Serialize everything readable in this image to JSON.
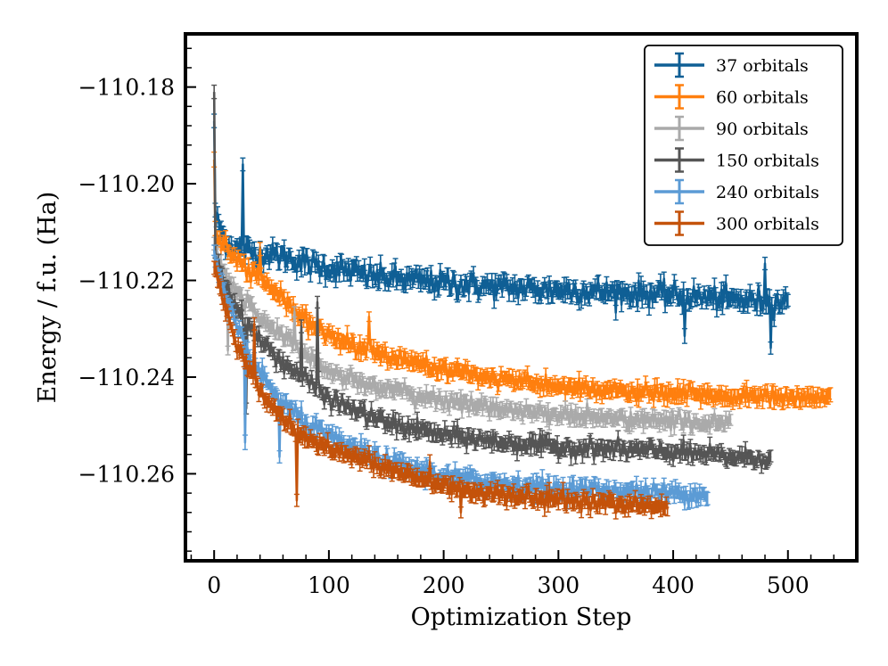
{
  "chart_data": {
    "type": "line",
    "title": "",
    "xlabel": "Optimization Step",
    "ylabel": "Energy / f.u. (Ha)",
    "xlim": [
      -25,
      560
    ],
    "ylim": [
      -110.278,
      -110.169
    ],
    "x_ticks": [
      0,
      100,
      200,
      300,
      400,
      500
    ],
    "x_tick_labels": [
      "0",
      "100",
      "200",
      "300",
      "400",
      "500"
    ],
    "y_ticks": [
      -110.26,
      -110.24,
      -110.22,
      -110.2,
      -110.18
    ],
    "y_tick_labels": [
      "−110.26",
      "−110.24",
      "−110.22",
      "−110.20",
      "−110.18"
    ],
    "legend_position": "top-right",
    "error_bars": true,
    "series": [
      {
        "name": "37 orbitals",
        "color": "#0f5f95",
        "steps": 500,
        "anchor_x": [
          0,
          5,
          10,
          20,
          40,
          60,
          80,
          100,
          150,
          200,
          250,
          300,
          350,
          400,
          450,
          500
        ],
        "anchor_y": [
          -110.206,
          -110.209,
          -110.212,
          -110.2135,
          -110.2145,
          -110.215,
          -110.2165,
          -110.2175,
          -110.2195,
          -110.2205,
          -110.2215,
          -110.222,
          -110.2225,
          -110.223,
          -110.224,
          -110.2245
        ],
        "noise": 0.0012,
        "err": 0.0013,
        "spikes": [
          [
            0,
            -110.187
          ],
          [
            25,
            -110.196
          ],
          [
            410,
            -110.2315
          ],
          [
            485,
            -110.234
          ],
          [
            480,
            -110.2165
          ]
        ]
      },
      {
        "name": "60 orbitals",
        "color": "#ff7f0e",
        "steps": 537,
        "anchor_x": [
          0,
          5,
          10,
          20,
          40,
          60,
          80,
          100,
          150,
          200,
          250,
          300,
          350,
          400,
          450,
          500,
          537
        ],
        "anchor_y": [
          -110.21,
          -110.212,
          -110.2135,
          -110.216,
          -110.2195,
          -110.224,
          -110.2285,
          -110.2315,
          -110.2355,
          -110.2385,
          -110.2405,
          -110.242,
          -110.243,
          -110.2435,
          -110.244,
          -110.2442,
          -110.2443
        ],
        "noise": 0.0008,
        "err": 0.0012,
        "spikes": [
          [
            0,
            -110.195
          ],
          [
            135,
            -110.2275
          ],
          [
            40,
            -110.2135
          ]
        ]
      },
      {
        "name": "90 orbitals",
        "color": "#aaaaaa",
        "steps": 450,
        "anchor_x": [
          0,
          5,
          10,
          20,
          40,
          60,
          80,
          100,
          150,
          200,
          250,
          300,
          350,
          400,
          450
        ],
        "anchor_y": [
          -110.213,
          -110.2165,
          -110.219,
          -110.2225,
          -110.2275,
          -110.2315,
          -110.235,
          -110.239,
          -110.2425,
          -110.245,
          -110.2465,
          -110.2478,
          -110.2487,
          -110.2492,
          -110.2495
        ],
        "noise": 0.0008,
        "err": 0.0011,
        "spikes": [
          [
            12,
            -110.2345
          ],
          [
            70,
            -110.2265
          ]
        ]
      },
      {
        "name": "150 orbitals",
        "color": "#555555",
        "steps": 485,
        "anchor_x": [
          0,
          5,
          10,
          20,
          40,
          60,
          80,
          100,
          150,
          200,
          250,
          300,
          350,
          400,
          450,
          485
        ],
        "anchor_y": [
          -110.214,
          -110.218,
          -110.221,
          -110.226,
          -110.2325,
          -110.237,
          -110.2405,
          -110.2445,
          -110.2495,
          -110.252,
          -110.2535,
          -110.2545,
          -110.255,
          -110.2555,
          -110.2565,
          -110.2568
        ],
        "noise": 0.0009,
        "err": 0.0011,
        "spikes": [
          [
            0,
            -110.181
          ],
          [
            28,
            -110.2465
          ],
          [
            76,
            -110.2295
          ],
          [
            90,
            -110.2245
          ]
        ]
      },
      {
        "name": "240 orbitals",
        "color": "#5b9bd5",
        "steps": 430,
        "anchor_x": [
          0,
          5,
          10,
          20,
          40,
          60,
          80,
          100,
          150,
          200,
          250,
          300,
          350,
          400,
          430
        ],
        "anchor_y": [
          -110.215,
          -110.2195,
          -110.2235,
          -110.2305,
          -110.2395,
          -110.2455,
          -110.2495,
          -110.2525,
          -110.2575,
          -110.2605,
          -110.262,
          -110.263,
          -110.2635,
          -110.264,
          -110.2642
        ],
        "noise": 0.0009,
        "err": 0.0012,
        "spikes": [
          [
            27,
            -110.2535
          ],
          [
            57,
            -110.2565
          ]
        ]
      },
      {
        "name": "300 orbitals",
        "color": "#c4520a",
        "steps": 395,
        "anchor_x": [
          0,
          5,
          10,
          20,
          40,
          60,
          80,
          100,
          150,
          200,
          250,
          300,
          350,
          395
        ],
        "anchor_y": [
          -110.217,
          -110.2215,
          -110.2255,
          -110.2335,
          -110.243,
          -110.2485,
          -110.2525,
          -110.2545,
          -110.259,
          -110.2625,
          -110.2645,
          -110.2655,
          -110.2662,
          -110.2668
        ],
        "noise": 0.0008,
        "err": 0.0012,
        "spikes": [
          [
            72,
            -110.2655
          ],
          [
            35,
            -110.229
          ],
          [
            188,
            -110.2575
          ],
          [
            215,
            -110.268
          ]
        ]
      }
    ]
  }
}
